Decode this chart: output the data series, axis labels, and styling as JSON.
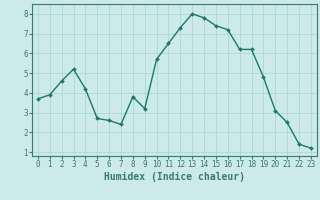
{
  "x": [
    0,
    1,
    2,
    3,
    4,
    5,
    6,
    7,
    8,
    9,
    10,
    11,
    12,
    13,
    14,
    15,
    16,
    17,
    18,
    19,
    20,
    21,
    22,
    23
  ],
  "y": [
    3.7,
    3.9,
    4.6,
    5.2,
    4.2,
    2.7,
    2.6,
    2.4,
    3.8,
    3.2,
    5.7,
    6.5,
    7.3,
    8.0,
    7.8,
    7.4,
    7.2,
    6.2,
    6.2,
    4.8,
    3.1,
    2.5,
    1.4,
    1.2
  ],
  "line_color": "#1a7a6a",
  "marker": "D",
  "marker_size": 2.0,
  "bg_color": "#cceae7",
  "grid_color": "#aad4d0",
  "xlabel": "Humidex (Indice chaleur)",
  "xlim": [
    -0.5,
    23.5
  ],
  "ylim": [
    0.8,
    8.5
  ],
  "yticks": [
    1,
    2,
    3,
    4,
    5,
    6,
    7,
    8
  ],
  "xticks": [
    0,
    1,
    2,
    3,
    4,
    5,
    6,
    7,
    8,
    9,
    10,
    11,
    12,
    13,
    14,
    15,
    16,
    17,
    18,
    19,
    20,
    21,
    22,
    23
  ],
  "tick_fontsize": 5.5,
  "xlabel_fontsize": 7.0,
  "line_width": 1.0,
  "spine_color": "#3a7a72"
}
